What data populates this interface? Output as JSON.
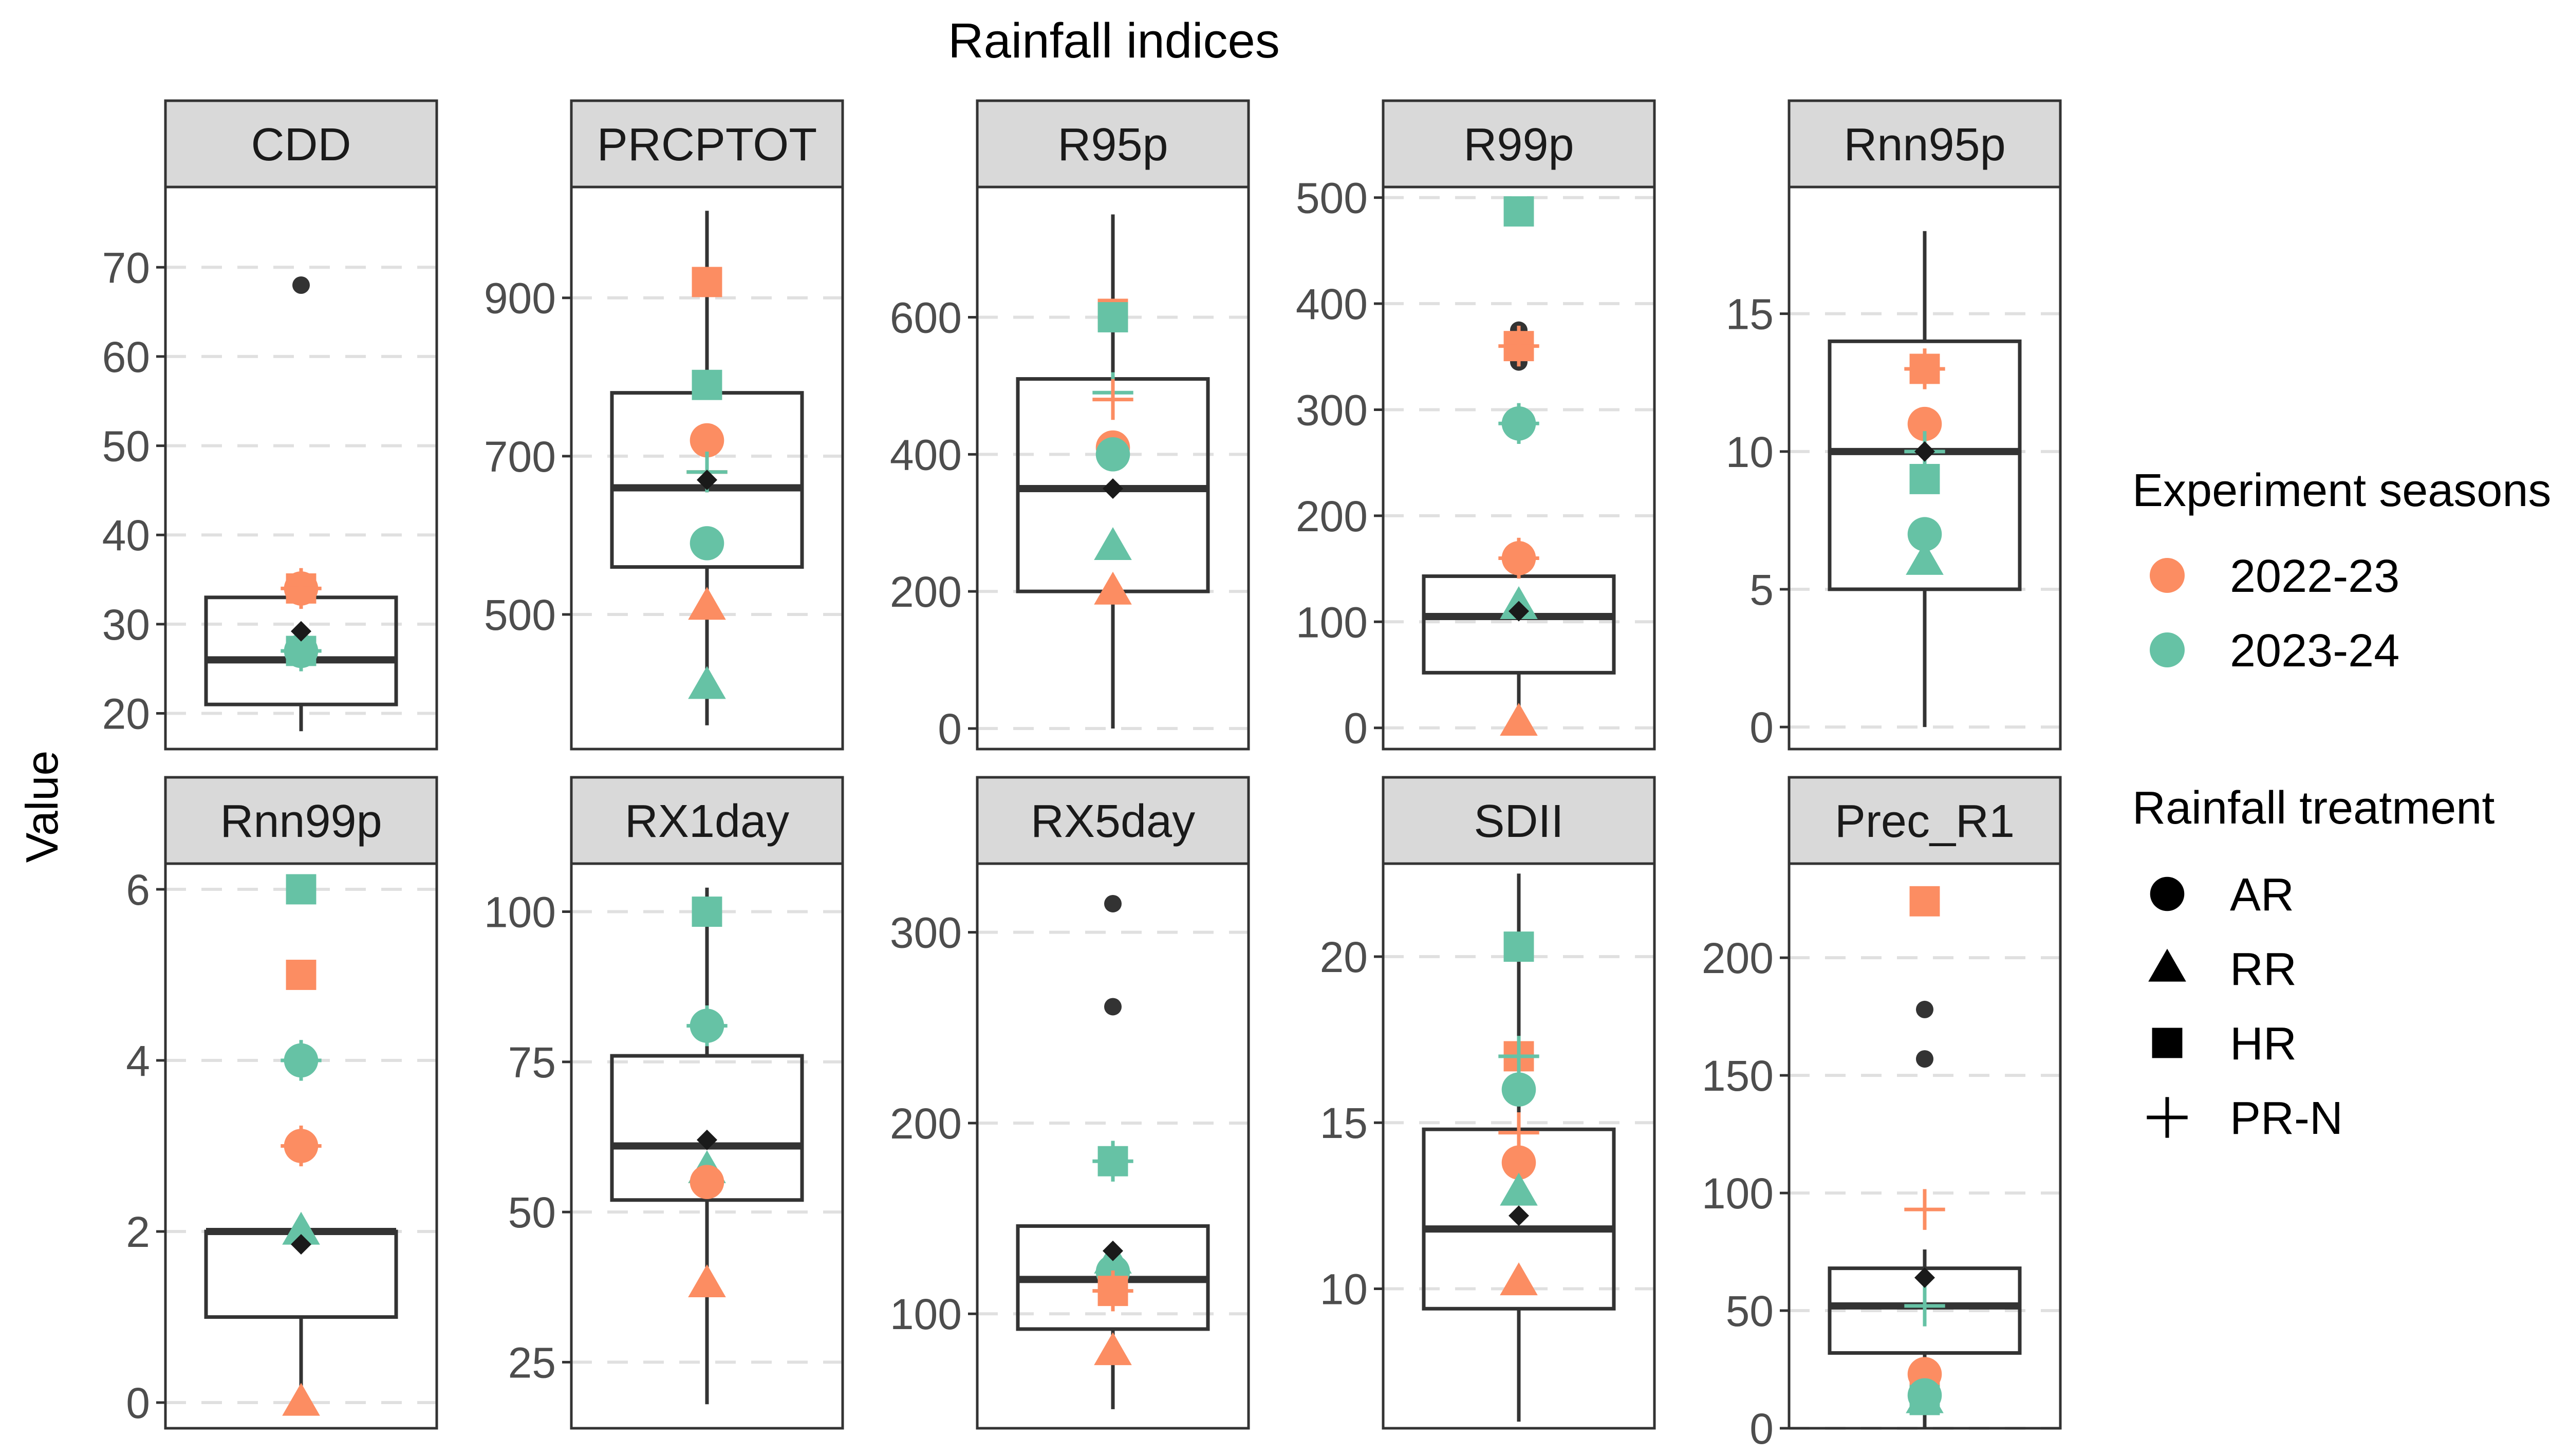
{
  "chart_data": {
    "type": "boxplot",
    "title": "Rainfall indices",
    "ylabel": "Value",
    "legend": {
      "position": "right",
      "color_title": "Experiment seasons",
      "color_entries": [
        {
          "label": "2022-23",
          "color": "#FC8D62"
        },
        {
          "label": "2023-24",
          "color": "#66C2A5"
        }
      ],
      "shape_title": "Rainfall treatment",
      "shape_entries": [
        {
          "label": "AR",
          "shape": "circle"
        },
        {
          "label": "RR",
          "shape": "triangle"
        },
        {
          "label": "HR",
          "shape": "square"
        },
        {
          "label": "PR-N",
          "shape": "plus"
        }
      ]
    },
    "colors": {
      "2022-23": "#FC8D62",
      "2023-24": "#66C2A5",
      "box": "#333333",
      "mean": "#1a1a1a",
      "strip": "#d9d9d9",
      "grid": "#e0e0e0"
    },
    "panels": [
      {
        "name": "CDD",
        "ylim": [
          16,
          79
        ],
        "ticks": [
          20,
          30,
          40,
          50,
          60,
          70
        ],
        "box": {
          "q1": 21,
          "median": 26,
          "q3": 33,
          "whisker_low": 18,
          "whisker_high": 34
        },
        "mean": 29.2,
        "outliers": [
          68
        ],
        "points": [
          {
            "season": "2022-23",
            "treatment": "AR",
            "value": 34
          },
          {
            "season": "2022-23",
            "treatment": "HR",
            "value": 34
          },
          {
            "season": "2022-23",
            "treatment": "PR-N",
            "value": 34
          },
          {
            "season": "2023-24",
            "treatment": "AR",
            "value": 27
          },
          {
            "season": "2023-24",
            "treatment": "HR",
            "value": 27
          },
          {
            "season": "2023-24",
            "treatment": "PR-N",
            "value": 27
          }
        ]
      },
      {
        "name": "PRCPTOT",
        "ylim": [
          330,
          1040
        ],
        "ticks": [
          500,
          700,
          900
        ],
        "box": {
          "q1": 560,
          "median": 660,
          "q3": 780,
          "whisker_low": 360,
          "whisker_high": 1010
        },
        "mean": 670,
        "outliers": [],
        "points": [
          {
            "season": "2022-23",
            "treatment": "HR",
            "value": 920
          },
          {
            "season": "2023-24",
            "treatment": "HR",
            "value": 790
          },
          {
            "season": "2022-23",
            "treatment": "AR",
            "value": 720
          },
          {
            "season": "2022-23",
            "treatment": "PR-N",
            "value": 680
          },
          {
            "season": "2023-24",
            "treatment": "PR-N",
            "value": 680
          },
          {
            "season": "2023-24",
            "treatment": "AR",
            "value": 590
          },
          {
            "season": "2022-23",
            "treatment": "RR",
            "value": 510
          },
          {
            "season": "2023-24",
            "treatment": "RR",
            "value": 410
          }
        ]
      },
      {
        "name": "R95p",
        "ylim": [
          -30,
          790
        ],
        "ticks": [
          0,
          200,
          400,
          600
        ],
        "box": {
          "q1": 200,
          "median": 350,
          "q3": 510,
          "whisker_low": 0,
          "whisker_high": 750
        },
        "mean": 350,
        "outliers": [],
        "points": [
          {
            "season": "2022-23",
            "treatment": "HR",
            "value": 605
          },
          {
            "season": "2023-24",
            "treatment": "HR",
            "value": 600
          },
          {
            "season": "2023-24",
            "treatment": "PR-N",
            "value": 490
          },
          {
            "season": "2022-23",
            "treatment": "PR-N",
            "value": 480
          },
          {
            "season": "2022-23",
            "treatment": "AR",
            "value": 410
          },
          {
            "season": "2023-24",
            "treatment": "AR",
            "value": 400
          },
          {
            "season": "2023-24",
            "treatment": "RR",
            "value": 265
          },
          {
            "season": "2022-23",
            "treatment": "RR",
            "value": 200
          }
        ]
      },
      {
        "name": "R99p",
        "ylim": [
          -20,
          510
        ],
        "ticks": [
          0,
          100,
          200,
          300,
          400,
          500
        ],
        "box": {
          "q1": 52,
          "median": 105,
          "q3": 143,
          "whisker_low": 0,
          "whisker_high": 143
        },
        "mean": 110,
        "outliers": [
          375,
          345
        ],
        "points": [
          {
            "season": "2023-24",
            "treatment": "HR",
            "value": 487
          },
          {
            "season": "2022-23",
            "treatment": "HR",
            "value": 360
          },
          {
            "season": "2022-23",
            "treatment": "PR-N",
            "value": 360
          },
          {
            "season": "2023-24",
            "treatment": "AR",
            "value": 287
          },
          {
            "season": "2023-24",
            "treatment": "PR-N",
            "value": 287
          },
          {
            "season": "2022-23",
            "treatment": "AR",
            "value": 160
          },
          {
            "season": "2022-23",
            "treatment": "PR-N",
            "value": 160
          },
          {
            "season": "2023-24",
            "treatment": "RR",
            "value": 115
          },
          {
            "season": "2022-23",
            "treatment": "RR",
            "value": 5
          }
        ]
      },
      {
        "name": "Rnn95p",
        "ylim": [
          -0.8,
          19.6
        ],
        "ticks": [
          0,
          5,
          10,
          15
        ],
        "box": {
          "q1": 5,
          "median": 10,
          "q3": 14,
          "whisker_low": 0,
          "whisker_high": 18
        },
        "mean": 10,
        "outliers": [],
        "points": [
          {
            "season": "2022-23",
            "treatment": "HR",
            "value": 13
          },
          {
            "season": "2022-23",
            "treatment": "PR-N",
            "value": 13
          },
          {
            "season": "2022-23",
            "treatment": "AR",
            "value": 11
          },
          {
            "season": "2023-24",
            "treatment": "PR-N",
            "value": 10
          },
          {
            "season": "2023-24",
            "treatment": "HR",
            "value": 9
          },
          {
            "season": "2023-24",
            "treatment": "AR",
            "value": 7
          },
          {
            "season": "2023-24",
            "treatment": "RR",
            "value": 6
          }
        ]
      },
      {
        "name": "Rnn99p",
        "ylim": [
          -0.3,
          6.3
        ],
        "ticks": [
          0,
          2,
          4,
          6
        ],
        "box": {
          "q1": 1,
          "median": 2,
          "q3": 2,
          "whisker_low": 0,
          "whisker_high": 2
        },
        "mean": 1.85,
        "outliers": [],
        "points": [
          {
            "season": "2023-24",
            "treatment": "HR",
            "value": 6
          },
          {
            "season": "2022-23",
            "treatment": "HR",
            "value": 5
          },
          {
            "season": "2023-24",
            "treatment": "AR",
            "value": 4
          },
          {
            "season": "2023-24",
            "treatment": "PR-N",
            "value": 4
          },
          {
            "season": "2022-23",
            "treatment": "AR",
            "value": 3
          },
          {
            "season": "2022-23",
            "treatment": "PR-N",
            "value": 3
          },
          {
            "season": "2023-24",
            "treatment": "RR",
            "value": 2
          },
          {
            "season": "2022-23",
            "treatment": "RR",
            "value": 0
          }
        ]
      },
      {
        "name": "RX1day",
        "ylim": [
          14,
          108
        ],
        "ticks": [
          25,
          50,
          75,
          100
        ],
        "box": {
          "q1": 52,
          "median": 61,
          "q3": 76,
          "whisker_low": 18,
          "whisker_high": 104
        },
        "mean": 62,
        "outliers": [],
        "points": [
          {
            "season": "2023-24",
            "treatment": "HR",
            "value": 100
          },
          {
            "season": "2023-24",
            "treatment": "AR",
            "value": 81
          },
          {
            "season": "2023-24",
            "treatment": "PR-N",
            "value": 81
          },
          {
            "season": "2023-24",
            "treatment": "RR",
            "value": 57
          },
          {
            "season": "2022-23",
            "treatment": "AR",
            "value": 55
          },
          {
            "season": "2022-23",
            "treatment": "RR",
            "value": 38
          }
        ]
      },
      {
        "name": "RX5day",
        "ylim": [
          40,
          336
        ],
        "ticks": [
          100,
          200,
          300
        ],
        "box": {
          "q1": 92,
          "median": 118,
          "q3": 146,
          "whisker_low": 50,
          "whisker_high": 146
        },
        "mean": 133,
        "outliers": [
          315,
          261
        ],
        "points": [
          {
            "season": "2023-24",
            "treatment": "HR",
            "value": 180
          },
          {
            "season": "2023-24",
            "treatment": "PR-N",
            "value": 180
          },
          {
            "season": "2023-24",
            "treatment": "RR",
            "value": 128
          },
          {
            "season": "2023-24",
            "treatment": "AR",
            "value": 122
          },
          {
            "season": "2022-23",
            "treatment": "HR",
            "value": 112
          },
          {
            "season": "2022-23",
            "treatment": "PR-N",
            "value": 112
          },
          {
            "season": "2022-23",
            "treatment": "RR",
            "value": 80
          }
        ]
      },
      {
        "name": "SDII",
        "ylim": [
          5.8,
          22.8
        ],
        "ticks": [
          10,
          15,
          20
        ],
        "box": {
          "q1": 9.4,
          "median": 11.8,
          "q3": 14.8,
          "whisker_low": 6,
          "whisker_high": 22.5
        },
        "mean": 12.2,
        "outliers": [],
        "points": [
          {
            "season": "2023-24",
            "treatment": "HR",
            "value": 20.3
          },
          {
            "season": "2022-23",
            "treatment": "HR",
            "value": 17
          },
          {
            "season": "2023-24",
            "treatment": "PR-N",
            "value": 17
          },
          {
            "season": "2023-24",
            "treatment": "AR",
            "value": 16
          },
          {
            "season": "2022-23",
            "treatment": "PR-N",
            "value": 14.7
          },
          {
            "season": "2022-23",
            "treatment": "AR",
            "value": 13.8
          },
          {
            "season": "2023-24",
            "treatment": "RR",
            "value": 12.9
          },
          {
            "season": "2022-23",
            "treatment": "RR",
            "value": 10.2
          }
        ]
      },
      {
        "name": "Prec_R1",
        "ylim": [
          0,
          240
        ],
        "ticks": [
          0,
          50,
          100,
          150,
          200
        ],
        "box": {
          "q1": 32,
          "median": 52,
          "q3": 68,
          "whisker_low": 0,
          "whisker_high": 76
        },
        "mean": 64,
        "outliers": [
          178,
          157
        ],
        "points": [
          {
            "season": "2022-23",
            "treatment": "HR",
            "value": 224
          },
          {
            "season": "2022-23",
            "treatment": "PR-N",
            "value": 93
          },
          {
            "season": "2023-24",
            "treatment": "PR-N",
            "value": 52
          },
          {
            "season": "2022-23",
            "treatment": "AR",
            "value": 23
          },
          {
            "season": "2022-23",
            "treatment": "HR",
            "value": 20
          },
          {
            "season": "2023-24",
            "treatment": "AR",
            "value": 14
          },
          {
            "season": "2023-24",
            "treatment": "RR",
            "value": 12
          },
          {
            "season": "2023-24",
            "treatment": "HR",
            "value": 12
          }
        ]
      }
    ]
  }
}
